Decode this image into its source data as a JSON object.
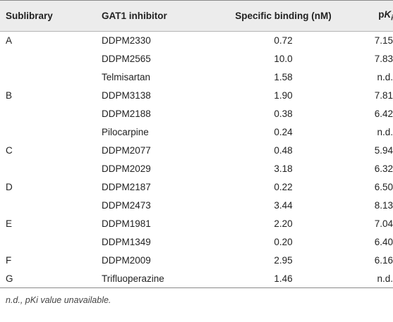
{
  "table": {
    "headers": {
      "sublibrary": "Sublibrary",
      "inhibitor": "GAT1 inhibitor",
      "binding": "Specific binding (nM)",
      "pki_p": "p",
      "pki_k": "K",
      "pki_i": "i"
    },
    "rows": [
      {
        "sublibrary": "A",
        "inhibitor": "DDPM2330",
        "binding": "0.72",
        "pki": "7.15"
      },
      {
        "sublibrary": "",
        "inhibitor": "DDPM2565",
        "binding": "10.0",
        "pki": "7.83"
      },
      {
        "sublibrary": "",
        "inhibitor": "Telmisartan",
        "binding": "1.58",
        "pki": "n.d."
      },
      {
        "sublibrary": "B",
        "inhibitor": "DDPM3138",
        "binding": "1.90",
        "pki": "7.81"
      },
      {
        "sublibrary": "",
        "inhibitor": "DDPM2188",
        "binding": "0.38",
        "pki": "6.42"
      },
      {
        "sublibrary": "",
        "inhibitor": "Pilocarpine",
        "binding": "0.24",
        "pki": "n.d."
      },
      {
        "sublibrary": "C",
        "inhibitor": "DDPM2077",
        "binding": "0.48",
        "pki": "5.94"
      },
      {
        "sublibrary": "",
        "inhibitor": "DDPM2029",
        "binding": "3.18",
        "pki": "6.32"
      },
      {
        "sublibrary": "D",
        "inhibitor": "DDPM2187",
        "binding": "0.22",
        "pki": "6.50"
      },
      {
        "sublibrary": "",
        "inhibitor": "DDPM2473",
        "binding": "3.44",
        "pki": "8.13"
      },
      {
        "sublibrary": "E",
        "inhibitor": "DDPM1981",
        "binding": "2.20",
        "pki": "7.04"
      },
      {
        "sublibrary": "",
        "inhibitor": "DDPM1349",
        "binding": "0.20",
        "pki": "6.40"
      },
      {
        "sublibrary": "F",
        "inhibitor": "DDPM2009",
        "binding": "2.95",
        "pki": "6.16"
      },
      {
        "sublibrary": "G",
        "inhibitor": "Trifluoperazine",
        "binding": "1.46",
        "pki": "n.d."
      }
    ]
  },
  "footnote": "n.d., pKi value unavailable."
}
